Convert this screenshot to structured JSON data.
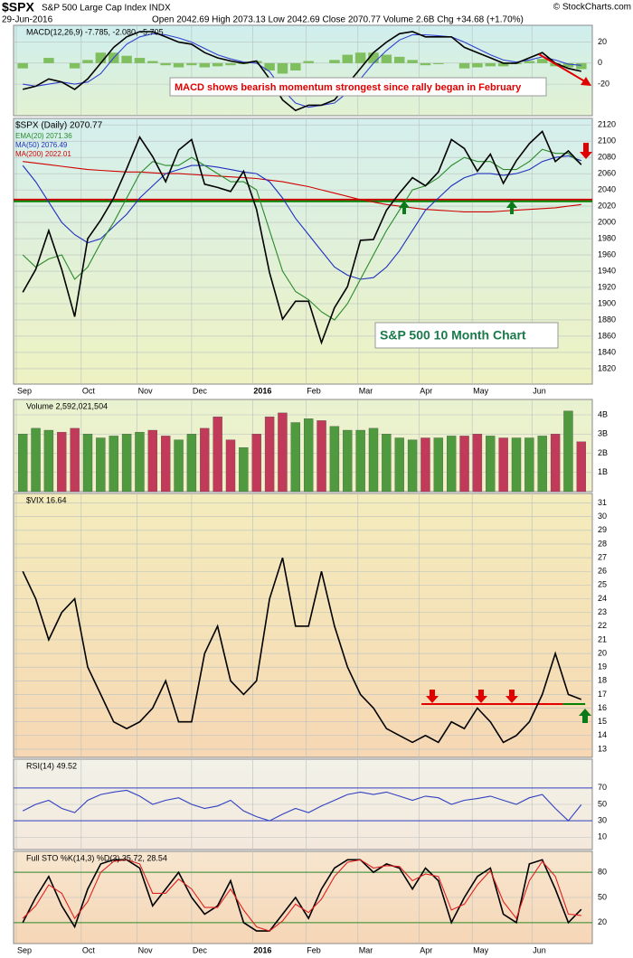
{
  "header": {
    "symbol": "$SPX",
    "name": "S&P 500 Large Cap Index INDX",
    "date": "29-Jun-2016",
    "quote": "Open 2042.69 High 2073.13 Low 2042.69 Close 2070.77 Volume 2.6B Chg +34.68 (+1.70%)",
    "credit": "© StockCharts.com"
  },
  "chart_data": [
    {
      "type": "line",
      "label": "MACD(12,26,9) -7.785, -2.080, -5.705",
      "annotation": "MACD shows bearish momentum strongest since rally began in February",
      "ylim": [
        -50,
        36
      ],
      "yticks": [
        20,
        0,
        -20
      ],
      "grid": true,
      "series": [
        {
          "color": "#7fbf5f",
          "bars": true,
          "values": [
            -5,
            0,
            5,
            0,
            -5,
            3,
            10,
            10,
            7,
            5,
            2,
            -2,
            -4,
            -2,
            -4,
            -3,
            -2,
            -1,
            2,
            -7,
            -10,
            -7,
            2,
            0,
            3,
            8,
            10,
            10,
            8,
            6,
            3,
            -2,
            -1,
            0,
            -5,
            -4,
            -3,
            -3,
            -1,
            2,
            4,
            -3,
            -4,
            -5.705
          ]
        },
        {
          "color": "#3040d0",
          "values": [
            -20,
            -22,
            -20,
            -18,
            -20,
            -18,
            -10,
            5,
            18,
            25,
            28,
            27,
            24,
            20,
            14,
            8,
            4,
            1,
            0,
            -8,
            -25,
            -38,
            -42,
            -40,
            -38,
            -28,
            -15,
            0,
            12,
            22,
            27,
            27,
            26,
            25,
            20,
            14,
            8,
            3,
            1,
            3,
            6,
            3,
            -1,
            -2.08
          ]
        },
        {
          "color": "#000000",
          "values": [
            -25,
            -22,
            -15,
            -18,
            -25,
            -15,
            0,
            15,
            25,
            30,
            30,
            25,
            20,
            18,
            10,
            5,
            2,
            0,
            2,
            -15,
            -35,
            -45,
            -40,
            -40,
            -35,
            -20,
            -5,
            10,
            20,
            28,
            30,
            25,
            25,
            25,
            15,
            10,
            5,
            0,
            0,
            5,
            10,
            0,
            -5,
            -7.785
          ]
        }
      ]
    },
    {
      "type": "line",
      "annotation": "S&P 500 10 Month Chart",
      "xlim": [
        -0.5,
        43.5
      ],
      "xticks": [
        {
          "value": -0.5,
          "label": "Sep"
        },
        {
          "value": 4.5,
          "label": "Oct"
        },
        {
          "value": 8.8,
          "label": "Nov"
        },
        {
          "value": 13,
          "label": "Dec"
        },
        {
          "value": 17.7,
          "label": "2016"
        },
        {
          "value": 21.8,
          "label": "Feb"
        },
        {
          "value": 25.8,
          "label": "Mar"
        },
        {
          "value": 30.5,
          "label": "Apr"
        },
        {
          "value": 34.6,
          "label": "May"
        },
        {
          "value": 39.2,
          "label": "Jun"
        }
      ],
      "ylim": [
        1801,
        2128
      ],
      "yticks": [
        1820,
        1840,
        1860,
        1880,
        1900,
        1920,
        1940,
        1960,
        1980,
        2000,
        2020,
        2040,
        2060,
        2080,
        2100,
        2120
      ],
      "grid": true,
      "hlines": [
        {
          "value": 2028,
          "color": "#d00000"
        },
        {
          "value": 2026,
          "color": "#008000"
        }
      ],
      "series": [
        {
          "name": "MA(200) 2022.01",
          "color": "#d00000",
          "values": [
            2075,
            2073,
            2071,
            2069,
            2067,
            2065,
            2064,
            2063,
            2062,
            2062,
            2061,
            2060,
            2060,
            2059,
            2058,
            2057,
            2056,
            2055,
            2054,
            2052,
            2050,
            2047,
            2044,
            2040,
            2036,
            2032,
            2028,
            2025,
            2022,
            2020,
            2018,
            2016,
            2015,
            2014,
            2013,
            2013,
            2013,
            2014,
            2015,
            2016,
            2017,
            2018,
            2020,
            2022
          ]
        },
        {
          "name": "MA(50) 2076.49",
          "color": "#2030c0",
          "values": [
            2070,
            2050,
            2025,
            2000,
            1985,
            1975,
            1980,
            1995,
            2010,
            2030,
            2045,
            2060,
            2065,
            2070,
            2070,
            2068,
            2065,
            2062,
            2060,
            2050,
            2030,
            2005,
            1985,
            1965,
            1945,
            1935,
            1930,
            1932,
            1945,
            1965,
            1990,
            2015,
            2030,
            2045,
            2055,
            2060,
            2060,
            2058,
            2060,
            2065,
            2075,
            2080,
            2082,
            2076
          ]
        },
        {
          "name": "EMA(20) 2071.36",
          "color": "#2a8a2a",
          "values": [
            1960,
            1945,
            1955,
            1960,
            1930,
            1945,
            1975,
            2000,
            2030,
            2060,
            2075,
            2070,
            2070,
            2080,
            2070,
            2060,
            2050,
            2050,
            2040,
            1990,
            1940,
            1915,
            1905,
            1890,
            1880,
            1900,
            1930,
            1960,
            1990,
            2015,
            2040,
            2045,
            2055,
            2070,
            2080,
            2075,
            2075,
            2065,
            2065,
            2075,
            2090,
            2085,
            2085,
            2071
          ]
        },
        {
          "name": "$SPX (Daily) 2070.77",
          "color": "#000000",
          "values": [
            1914,
            1942,
            1990,
            1942,
            1884,
            1980,
            2003,
            2030,
            2066,
            2105,
            2081,
            2050,
            2089,
            2102,
            2047,
            2043,
            2038,
            2063,
            2016,
            1938,
            1881,
            1903,
            1903,
            1852,
            1895,
            1921,
            1978,
            1979,
            2015,
            2036,
            2055,
            2045,
            2062,
            2102,
            2091,
            2063,
            2084,
            2048,
            2076,
            2097,
            2112,
            2075,
            2088,
            2071
          ]
        }
      ]
    },
    {
      "type": "bar",
      "label": "Volume 2,592,021,504",
      "up_color": "#4f9a3f",
      "down_color": "#c23a5a",
      "ylim": [
        0,
        4.8
      ],
      "yticks": [
        {
          "value": 1,
          "label": "1B"
        },
        {
          "value": 2,
          "label": "2B"
        },
        {
          "value": 3,
          "label": "3B"
        },
        {
          "value": 4,
          "label": "4B"
        }
      ],
      "grid": true,
      "values": [
        3.0,
        3.3,
        3.2,
        3.1,
        3.3,
        3.0,
        2.8,
        2.9,
        3.0,
        3.1,
        3.2,
        2.9,
        2.7,
        3.0,
        3.3,
        3.9,
        2.7,
        2.3,
        3.0,
        3.9,
        4.1,
        3.6,
        3.8,
        3.7,
        3.4,
        3.2,
        3.2,
        3.3,
        3.0,
        2.8,
        2.7,
        2.8,
        2.8,
        2.9,
        2.9,
        3.0,
        2.9,
        2.8,
        2.8,
        2.8,
        2.9,
        3.0,
        4.2,
        2.6
      ]
    },
    {
      "type": "line",
      "label": "$VIX 16.64",
      "ylim": [
        12.4,
        31.7
      ],
      "yticks": [
        13,
        14,
        15,
        16,
        17,
        18,
        19,
        20,
        21,
        22,
        23,
        24,
        25,
        26,
        27,
        28,
        29,
        30,
        31
      ],
      "grid": true,
      "hlines": [
        {
          "value": 16.3,
          "color": "#e00000",
          "from": 30.7,
          "to": 41.6
        },
        {
          "value": 16.3,
          "color": "#008000",
          "from": 41.6,
          "to": 43.3
        }
      ],
      "series": [
        {
          "color": "#000000",
          "values": [
            26,
            24,
            21,
            23,
            24,
            19,
            17,
            15,
            14.5,
            15,
            16,
            18,
            15,
            15,
            20,
            22,
            18,
            17,
            18,
            24,
            27,
            22,
            22,
            26,
            22,
            19,
            17,
            16,
            14.5,
            14,
            13.5,
            14,
            13.5,
            15,
            14.5,
            16,
            15,
            13.5,
            14,
            15,
            17,
            20,
            17,
            16.64
          ]
        }
      ]
    },
    {
      "type": "line",
      "label": "RSI(14) 49.52",
      "ylim": [
        -5,
        105
      ],
      "yticks": [
        10,
        30,
        50,
        70
      ],
      "grid": true,
      "bands": [
        30,
        70
      ],
      "band_color": "#3040c0",
      "series": [
        {
          "color": "#3040c0",
          "values": [
            42,
            50,
            55,
            45,
            40,
            55,
            62,
            65,
            67,
            60,
            50,
            55,
            58,
            50,
            45,
            48,
            55,
            42,
            35,
            30,
            38,
            45,
            40,
            48,
            55,
            62,
            65,
            62,
            65,
            60,
            55,
            60,
            58,
            50,
            55,
            57,
            60,
            55,
            50,
            58,
            62,
            45,
            30,
            49.52
          ]
        }
      ]
    },
    {
      "type": "line",
      "label": "Full STO %K(14,3) %D(3) 35.72, 28.54",
      "ylim": [
        -5,
        105
      ],
      "yticks": [
        20,
        50,
        80
      ],
      "grid": true,
      "bands": [
        20,
        80
      ],
      "band_color": "#2a8a2a",
      "xticks": [
        {
          "value": -0.5,
          "label": "Sep"
        },
        {
          "value": 4.5,
          "label": "Oct"
        },
        {
          "value": 8.8,
          "label": "Nov"
        },
        {
          "value": 13,
          "label": "Dec"
        },
        {
          "value": 17.7,
          "label": "2016"
        },
        {
          "value": 21.8,
          "label": "Feb"
        },
        {
          "value": 25.8,
          "label": "Mar"
        },
        {
          "value": 30.5,
          "label": "Apr"
        },
        {
          "value": 34.6,
          "label": "May"
        },
        {
          "value": 39.2,
          "label": "Jun"
        }
      ],
      "series": [
        {
          "color": "#000000",
          "values": [
            20,
            50,
            75,
            40,
            15,
            60,
            90,
            95,
            95,
            85,
            40,
            60,
            80,
            50,
            30,
            40,
            70,
            20,
            10,
            10,
            30,
            50,
            25,
            60,
            85,
            95,
            95,
            80,
            90,
            85,
            60,
            85,
            70,
            20,
            50,
            75,
            85,
            30,
            20,
            90,
            95,
            60,
            20,
            35.72
          ]
        },
        {
          "color": "#e02020",
          "values": [
            25,
            40,
            65,
            55,
            25,
            45,
            80,
            93,
            95,
            90,
            55,
            55,
            72,
            60,
            38,
            38,
            60,
            35,
            15,
            10,
            22,
            42,
            32,
            48,
            75,
            92,
            95,
            85,
            88,
            87,
            70,
            78,
            75,
            35,
            42,
            65,
            82,
            45,
            25,
            70,
            93,
            75,
            30,
            28.54
          ]
        }
      ]
    }
  ]
}
